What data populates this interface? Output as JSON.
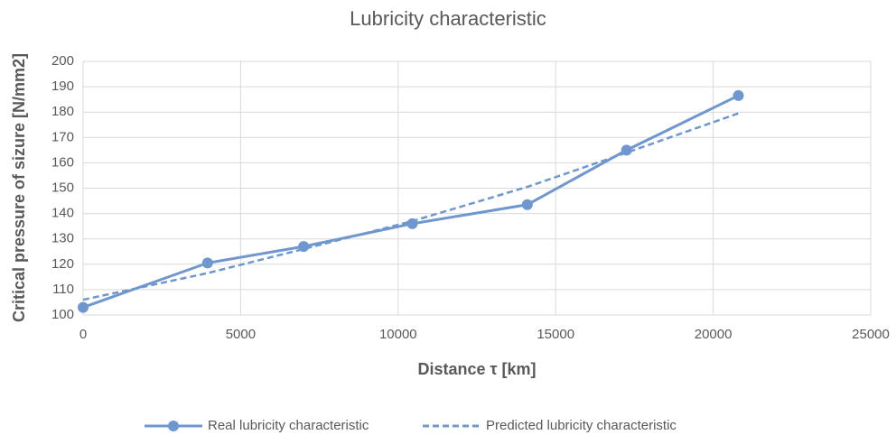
{
  "chart_data": {
    "type": "line",
    "title": "Lubricity characteristic",
    "x_label": "Distance τ [km]",
    "y_label": "Critical pressure of sizure [N/mm2]",
    "x": [
      0,
      3950,
      7000,
      10450,
      14100,
      17250,
      20800
    ],
    "series": [
      {
        "name": "Real lubricity characteristic",
        "color": "#6f97cf",
        "dash": false,
        "markers": true,
        "values": [
          103,
          120.5,
          127,
          136,
          143.5,
          165,
          186.5
        ]
      },
      {
        "name": "Predicted lubricity characteristic",
        "color": "#6f97cf",
        "dash": true,
        "markers": false,
        "values": [
          106,
          116.5,
          126,
          137,
          150.5,
          164,
          179.5
        ]
      }
    ],
    "xlim": [
      0,
      25000
    ],
    "xticks": [
      0,
      5000,
      10000,
      15000,
      20000,
      25000
    ],
    "ylim": [
      100,
      200
    ],
    "yticks": [
      100,
      110,
      120,
      130,
      140,
      150,
      160,
      170,
      180,
      190,
      200
    ],
    "grid": true,
    "legend": "bottom"
  }
}
